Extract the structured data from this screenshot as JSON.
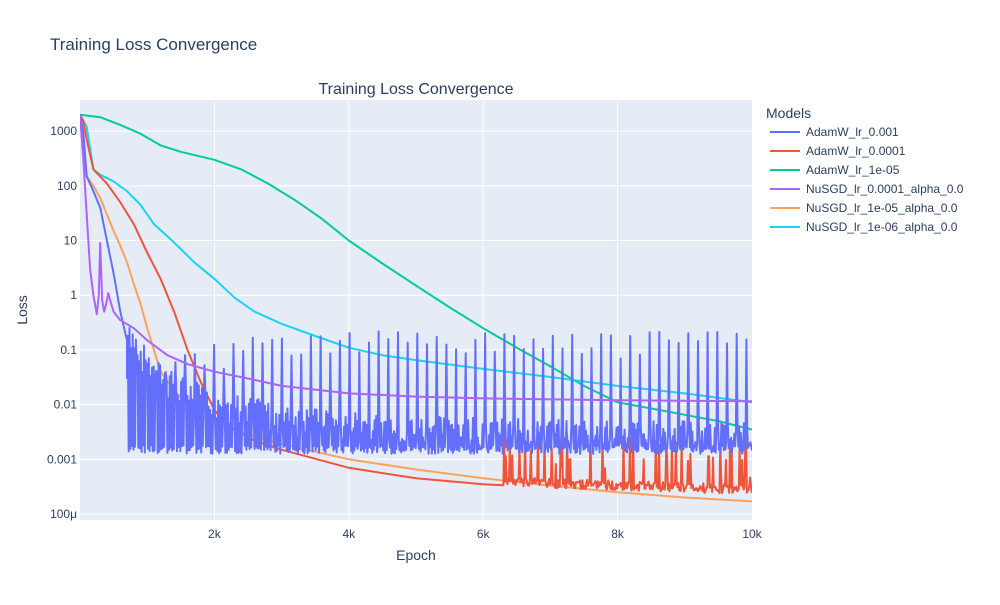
{
  "page": {
    "title": "Training Loss Convergence"
  },
  "chart_data": {
    "type": "line",
    "title": "Training Loss Convergence",
    "xlabel": "Epoch",
    "ylabel": "Loss",
    "x_scale": "linear",
    "y_scale": "log",
    "xlim": [
      0,
      10000
    ],
    "ylim": [
      7.76e-05,
      3715
    ],
    "x_ticks": [
      {
        "value": 2000,
        "label": "2k"
      },
      {
        "value": 4000,
        "label": "4k"
      },
      {
        "value": 6000,
        "label": "6k"
      },
      {
        "value": 8000,
        "label": "8k"
      },
      {
        "value": 10000,
        "label": "10k"
      }
    ],
    "y_ticks": [
      {
        "value": 1000,
        "label": "1000"
      },
      {
        "value": 100,
        "label": "100"
      },
      {
        "value": 10,
        "label": "10"
      },
      {
        "value": 1,
        "label": "1"
      },
      {
        "value": 0.1,
        "label": "0.1"
      },
      {
        "value": 0.01,
        "label": "0.01"
      },
      {
        "value": 0.001,
        "label": "0.001"
      },
      {
        "value": 0.0001,
        "label": "100μ"
      }
    ],
    "grid": true,
    "legend": {
      "title": "Models",
      "position": "right"
    },
    "series": [
      {
        "name": "AdamW_lr_0.001",
        "color": "#636efa",
        "noise": {
          "start": 700,
          "low": 0.0014,
          "high": 0.22,
          "period": 70
        },
        "points": [
          [
            0,
            2000
          ],
          [
            50,
            900
          ],
          [
            100,
            150
          ],
          [
            200,
            80
          ],
          [
            300,
            40
          ],
          [
            400,
            10
          ],
          [
            500,
            2.5
          ],
          [
            600,
            0.5
          ],
          [
            700,
            0.15
          ],
          [
            800,
            0.06
          ],
          [
            1000,
            0.025
          ],
          [
            1200,
            0.014
          ],
          [
            1500,
            0.008
          ],
          [
            2000,
            0.005
          ],
          [
            2500,
            0.0035
          ],
          [
            3000,
            0.0025
          ],
          [
            4000,
            0.0018
          ],
          [
            6000,
            0.0014
          ],
          [
            10000,
            0.0012
          ]
        ]
      },
      {
        "name": "AdamW_lr_0.0001",
        "color": "#ef553b",
        "noise": {
          "start": 6300,
          "low": 0.00028,
          "high": 0.003,
          "period": 55
        },
        "points": [
          [
            0,
            2000
          ],
          [
            50,
            1500
          ],
          [
            100,
            700
          ],
          [
            200,
            200
          ],
          [
            400,
            110
          ],
          [
            600,
            50
          ],
          [
            800,
            20
          ],
          [
            1000,
            6
          ],
          [
            1200,
            2
          ],
          [
            1400,
            0.5
          ],
          [
            1600,
            0.1
          ],
          [
            1800,
            0.025
          ],
          [
            2000,
            0.008
          ],
          [
            2200,
            0.004
          ],
          [
            2600,
            0.0022
          ],
          [
            3000,
            0.0015
          ],
          [
            4000,
            0.0007
          ],
          [
            5000,
            0.00045
          ],
          [
            6000,
            0.00035
          ],
          [
            7000,
            0.0003
          ],
          [
            8000,
            0.00027
          ],
          [
            9000,
            0.00025
          ],
          [
            10000,
            0.00023
          ]
        ]
      },
      {
        "name": "AdamW_lr_1e-05",
        "color": "#00cc96",
        "points": [
          [
            0,
            2000
          ],
          [
            300,
            1800
          ],
          [
            600,
            1300
          ],
          [
            900,
            900
          ],
          [
            1200,
            550
          ],
          [
            1500,
            420
          ],
          [
            2000,
            300
          ],
          [
            2400,
            200
          ],
          [
            2800,
            110
          ],
          [
            3200,
            55
          ],
          [
            3600,
            25
          ],
          [
            4000,
            10
          ],
          [
            4500,
            3.8
          ],
          [
            5000,
            1.5
          ],
          [
            5500,
            0.6
          ],
          [
            6000,
            0.25
          ],
          [
            6500,
            0.11
          ],
          [
            7000,
            0.05
          ],
          [
            7500,
            0.022
          ],
          [
            8000,
            0.011
          ],
          [
            8500,
            0.0085
          ],
          [
            9000,
            0.0065
          ],
          [
            9500,
            0.005
          ],
          [
            10000,
            0.0035
          ]
        ]
      },
      {
        "name": "NuSGD_lr_0.0001_alpha_0.0",
        "color": "#ab63fa",
        "points": [
          [
            0,
            2000
          ],
          [
            50,
            300
          ],
          [
            100,
            30
          ],
          [
            150,
            3
          ],
          [
            200,
            1
          ],
          [
            250,
            0.45
          ],
          [
            280,
            1
          ],
          [
            300,
            9
          ],
          [
            330,
            0.8
          ],
          [
            360,
            0.5
          ],
          [
            400,
            0.8
          ],
          [
            420,
            1.1
          ],
          [
            450,
            0.8
          ],
          [
            500,
            0.5
          ],
          [
            600,
            0.35
          ],
          [
            800,
            0.25
          ],
          [
            1000,
            0.15
          ],
          [
            1300,
            0.08
          ],
          [
            1600,
            0.055
          ],
          [
            2000,
            0.04
          ],
          [
            2500,
            0.03
          ],
          [
            3000,
            0.022
          ],
          [
            4000,
            0.016
          ],
          [
            5000,
            0.014
          ],
          [
            6000,
            0.013
          ],
          [
            8000,
            0.012
          ],
          [
            10000,
            0.0115
          ]
        ]
      },
      {
        "name": "NuSGD_lr_1e-05_alpha_0.0",
        "color": "#ffa15a",
        "points": [
          [
            0,
            2000
          ],
          [
            50,
            400
          ],
          [
            100,
            150
          ],
          [
            200,
            100
          ],
          [
            300,
            60
          ],
          [
            400,
            30
          ],
          [
            500,
            15
          ],
          [
            600,
            8
          ],
          [
            700,
            4
          ],
          [
            800,
            1.6
          ],
          [
            900,
            0.7
          ],
          [
            1000,
            0.25
          ],
          [
            1100,
            0.1
          ],
          [
            1200,
            0.04
          ],
          [
            1400,
            0.018
          ],
          [
            1600,
            0.01
          ],
          [
            1800,
            0.0065
          ],
          [
            2000,
            0.005
          ],
          [
            2500,
            0.0028
          ],
          [
            3000,
            0.0019
          ],
          [
            4000,
            0.001
          ],
          [
            5000,
            0.00065
          ],
          [
            6000,
            0.00045
          ],
          [
            7000,
            0.00033
          ],
          [
            8000,
            0.00025
          ],
          [
            9000,
            0.0002
          ],
          [
            10000,
            0.00017
          ]
        ]
      },
      {
        "name": "NuSGD_lr_1e-06_alpha_0.0",
        "color": "#19d3f3",
        "points": [
          [
            0,
            2000
          ],
          [
            100,
            1200
          ],
          [
            200,
            200
          ],
          [
            300,
            160
          ],
          [
            500,
            120
          ],
          [
            700,
            80
          ],
          [
            900,
            45
          ],
          [
            1100,
            20
          ],
          [
            1300,
            12
          ],
          [
            1500,
            7
          ],
          [
            1700,
            4
          ],
          [
            2000,
            2
          ],
          [
            2300,
            0.9
          ],
          [
            2600,
            0.5
          ],
          [
            3000,
            0.3
          ],
          [
            3500,
            0.18
          ],
          [
            4000,
            0.11
          ],
          [
            4500,
            0.08
          ],
          [
            5000,
            0.065
          ],
          [
            6000,
            0.045
          ],
          [
            7000,
            0.032
          ],
          [
            8000,
            0.022
          ],
          [
            9000,
            0.016
          ],
          [
            10000,
            0.011
          ]
        ]
      }
    ]
  }
}
